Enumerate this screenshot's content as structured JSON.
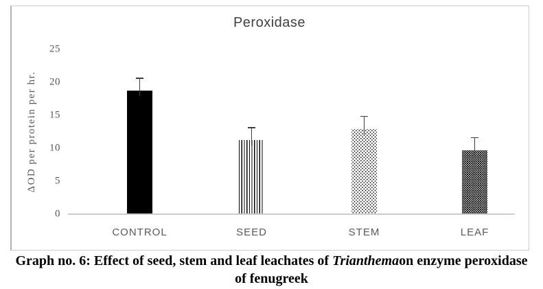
{
  "chart_data": {
    "type": "bar",
    "title": "Peroxidase",
    "ylabel": "ΔOD per protein per hr.",
    "xlabel": "",
    "categories": [
      "CONTROL",
      "SEED",
      "STEM",
      "LEAF"
    ],
    "values": [
      18.8,
      11.3,
      12.9,
      9.7
    ],
    "error_plus": [
      1.9,
      1.9,
      2.0,
      2.0
    ],
    "patterns": [
      "solid-black",
      "vertical-stripes",
      "sparse-dots",
      "dense-dots-inverse"
    ],
    "bar_color": "#000000",
    "ylim": [
      0,
      25
    ],
    "yticks": [
      0,
      5,
      10,
      15,
      20,
      25
    ],
    "grid": false,
    "legend": false
  },
  "caption": {
    "line1_prefix": "Graph no. 6: Effect of seed, stem and leaf leachates of ",
    "line1_species": "Trianthema",
    "line1_suffix": "on enzyme peroxidase",
    "line2": "of fenugreek"
  },
  "colors": {
    "axis_line": "#cdcdcd",
    "tick_text": "#595959",
    "title_text": "#404040",
    "error_bar": "#3f3f3f",
    "frame_border": "#cccccc"
  }
}
